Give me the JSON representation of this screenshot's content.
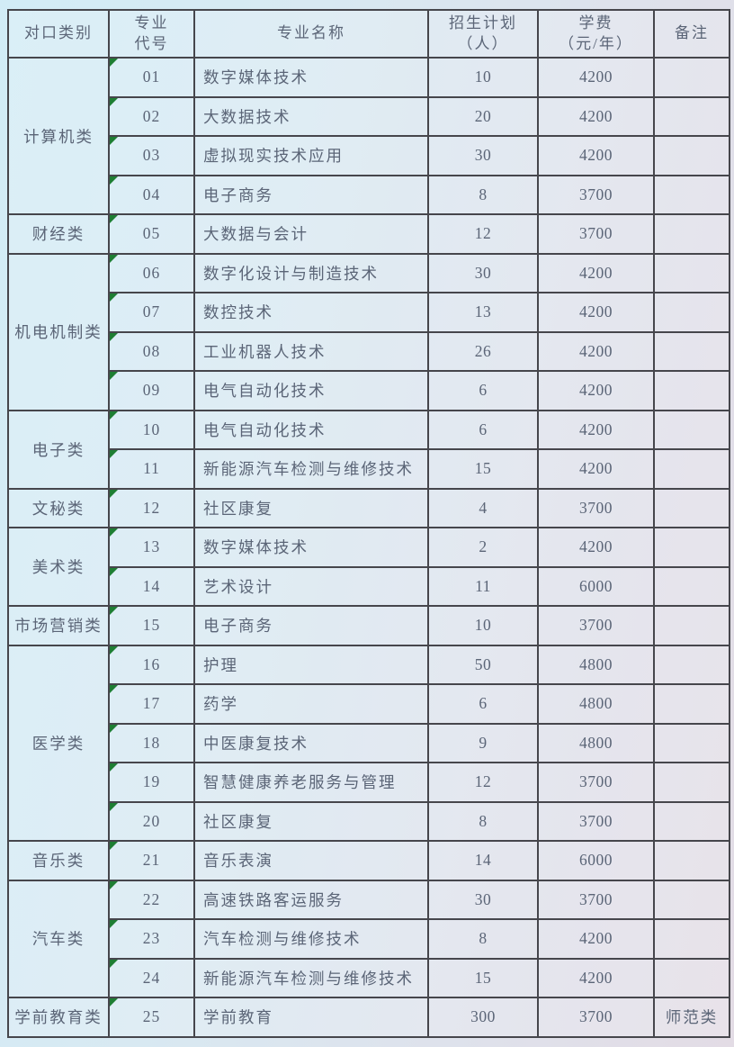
{
  "table": {
    "headers": {
      "category": "对口类别",
      "code": "专业\n代号",
      "name": "专业名称",
      "plan": "招生计划\n（人）",
      "fee": "学费\n（元/年）",
      "remark": "备注"
    },
    "rows": [
      {
        "category": "计算机类",
        "span": 4,
        "code": "01",
        "name": "数字媒体技术",
        "plan": "10",
        "fee": "4200",
        "remark": ""
      },
      {
        "code": "02",
        "name": "大数据技术",
        "plan": "20",
        "fee": "4200",
        "remark": ""
      },
      {
        "code": "03",
        "name": "虚拟现实技术应用",
        "plan": "30",
        "fee": "4200",
        "remark": ""
      },
      {
        "code": "04",
        "name": "电子商务",
        "plan": "8",
        "fee": "3700",
        "remark": ""
      },
      {
        "category": "财经类",
        "span": 1,
        "code": "05",
        "name": "大数据与会计",
        "plan": "12",
        "fee": "3700",
        "remark": ""
      },
      {
        "category": "机电机制类",
        "span": 4,
        "code": "06",
        "name": "数字化设计与制造技术",
        "plan": "30",
        "fee": "4200",
        "remark": ""
      },
      {
        "code": "07",
        "name": "数控技术",
        "plan": "13",
        "fee": "4200",
        "remark": ""
      },
      {
        "code": "08",
        "name": "工业机器人技术",
        "plan": "26",
        "fee": "4200",
        "remark": ""
      },
      {
        "code": "09",
        "name": "电气自动化技术",
        "plan": "6",
        "fee": "4200",
        "remark": ""
      },
      {
        "category": "电子类",
        "span": 2,
        "code": "10",
        "name": "电气自动化技术",
        "plan": "6",
        "fee": "4200",
        "remark": ""
      },
      {
        "code": "11",
        "name": "新能源汽车检测与维修技术",
        "plan": "15",
        "fee": "4200",
        "remark": ""
      },
      {
        "category": "文秘类",
        "span": 1,
        "code": "12",
        "name": "社区康复",
        "plan": "4",
        "fee": "3700",
        "remark": ""
      },
      {
        "category": "美术类",
        "span": 2,
        "code": "13",
        "name": "数字媒体技术",
        "plan": "2",
        "fee": "4200",
        "remark": ""
      },
      {
        "code": "14",
        "name": "艺术设计",
        "plan": "11",
        "fee": "6000",
        "remark": ""
      },
      {
        "category": "市场营销类",
        "span": 1,
        "code": "15",
        "name": "电子商务",
        "plan": "10",
        "fee": "3700",
        "remark": ""
      },
      {
        "category": "医学类",
        "span": 5,
        "code": "16",
        "name": "护理",
        "plan": "50",
        "fee": "4800",
        "remark": ""
      },
      {
        "code": "17",
        "name": "药学",
        "plan": "6",
        "fee": "4800",
        "remark": ""
      },
      {
        "code": "18",
        "name": "中医康复技术",
        "plan": "9",
        "fee": "4800",
        "remark": ""
      },
      {
        "code": "19",
        "name": "智慧健康养老服务与管理",
        "plan": "12",
        "fee": "3700",
        "remark": ""
      },
      {
        "code": "20",
        "name": "社区康复",
        "plan": "8",
        "fee": "3700",
        "remark": ""
      },
      {
        "category": "音乐类",
        "span": 1,
        "code": "21",
        "name": "音乐表演",
        "plan": "14",
        "fee": "6000",
        "remark": ""
      },
      {
        "category": "汽车类",
        "span": 3,
        "code": "22",
        "name": "高速铁路客运服务",
        "plan": "30",
        "fee": "3700",
        "remark": ""
      },
      {
        "code": "23",
        "name": "汽车检测与维修技术",
        "plan": "8",
        "fee": "4200",
        "remark": ""
      },
      {
        "code": "24",
        "name": "新能源汽车检测与维修技术",
        "plan": "15",
        "fee": "4200",
        "remark": ""
      },
      {
        "category": "学前教育类",
        "span": 1,
        "code": "25",
        "name": "学前教育",
        "plan": "300",
        "fee": "3700",
        "remark": "师范类"
      }
    ],
    "marker_color": "#1e7e33",
    "border_color": "#46464c",
    "text_color": "#5b6577"
  }
}
